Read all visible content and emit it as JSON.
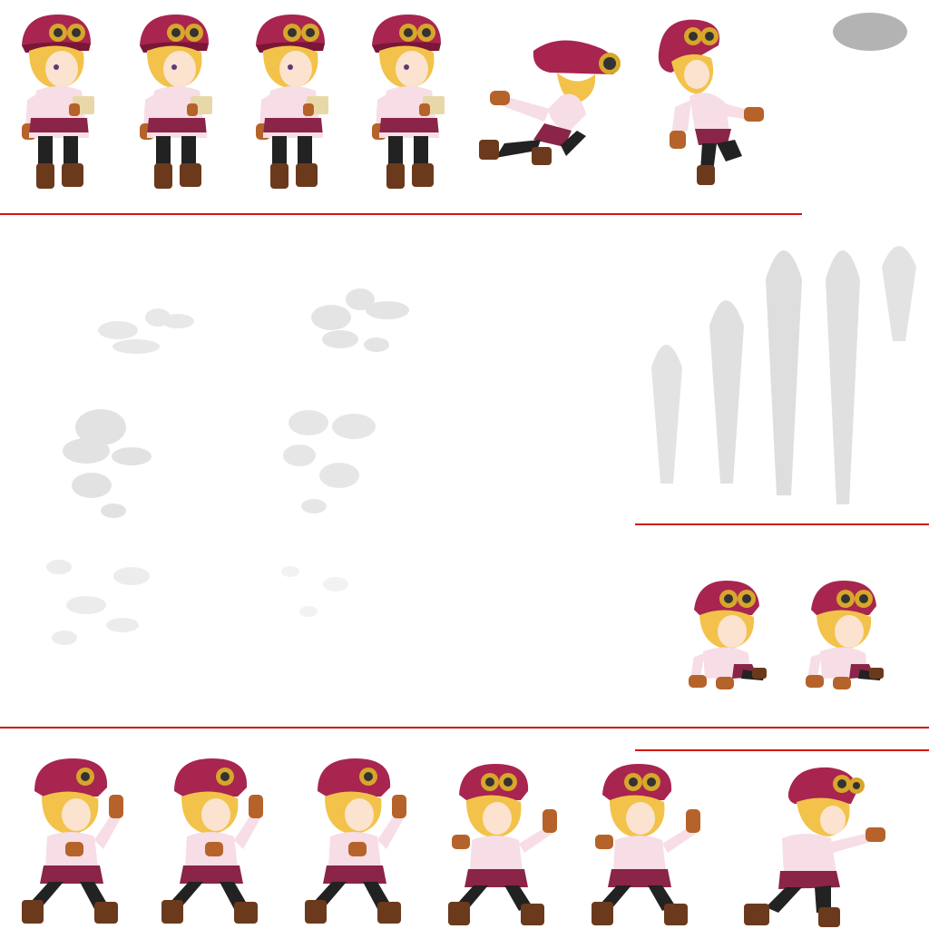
{
  "sheet": {
    "background": "#ffffff",
    "divider_color": "#d21414",
    "colors": {
      "hat": "#a8254f",
      "hat_dark": "#7a1638",
      "hair": "#f2c24a",
      "skin": "#fbe3cf",
      "blouse": "#f7dde6",
      "skirt": "#8a2448",
      "legs": "#222222",
      "boots": "#6b3a1c",
      "gloves": "#b5632a",
      "goggles": "#d7a62b",
      "smoke": "#dddddd"
    }
  },
  "rows": [
    {
      "name": "idle-reading",
      "frames": 4
    },
    {
      "name": "jump",
      "frames": 2
    },
    {
      "name": "smoke-effect",
      "frames": 6
    },
    {
      "name": "speed-streak-effect",
      "frames": 5
    },
    {
      "name": "knockdown",
      "frames": 2
    },
    {
      "name": "palm-strike",
      "frames": 6
    }
  ]
}
